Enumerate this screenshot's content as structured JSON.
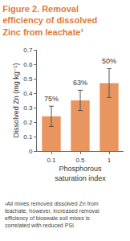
{
  "chart_data": {
    "type": "bar",
    "title": "Figure 2. Removal efficiency of dissolved Zinc from leachate¹",
    "x_label": "Phosphorous saturation index",
    "y_label": "Dissolved Zn (mg kg⁻¹)",
    "categories": [
      "0.1",
      "0.5",
      "1"
    ],
    "values": [
      0.24,
      0.35,
      0.47
    ],
    "errors": [
      0.07,
      0.07,
      0.1
    ],
    "color": "#e9955f",
    "ylim": [
      0,
      0.7
    ],
    "yticks": [
      0,
      0.1,
      0.2,
      0.3,
      0.4,
      0.5,
      0.6,
      0.7
    ],
    "grid": false,
    "annotations": [
      {
        "category": "0.1",
        "text": "75%"
      },
      {
        "category": "0.5",
        "text": "63%"
      },
      {
        "category": "1",
        "text": "50%"
      }
    ],
    "footnote": "¹All mixes removed dissolved Zn from leachate, however, increased removal efficiency of bioswale soil mixes is correlated with reduced PSI."
  }
}
